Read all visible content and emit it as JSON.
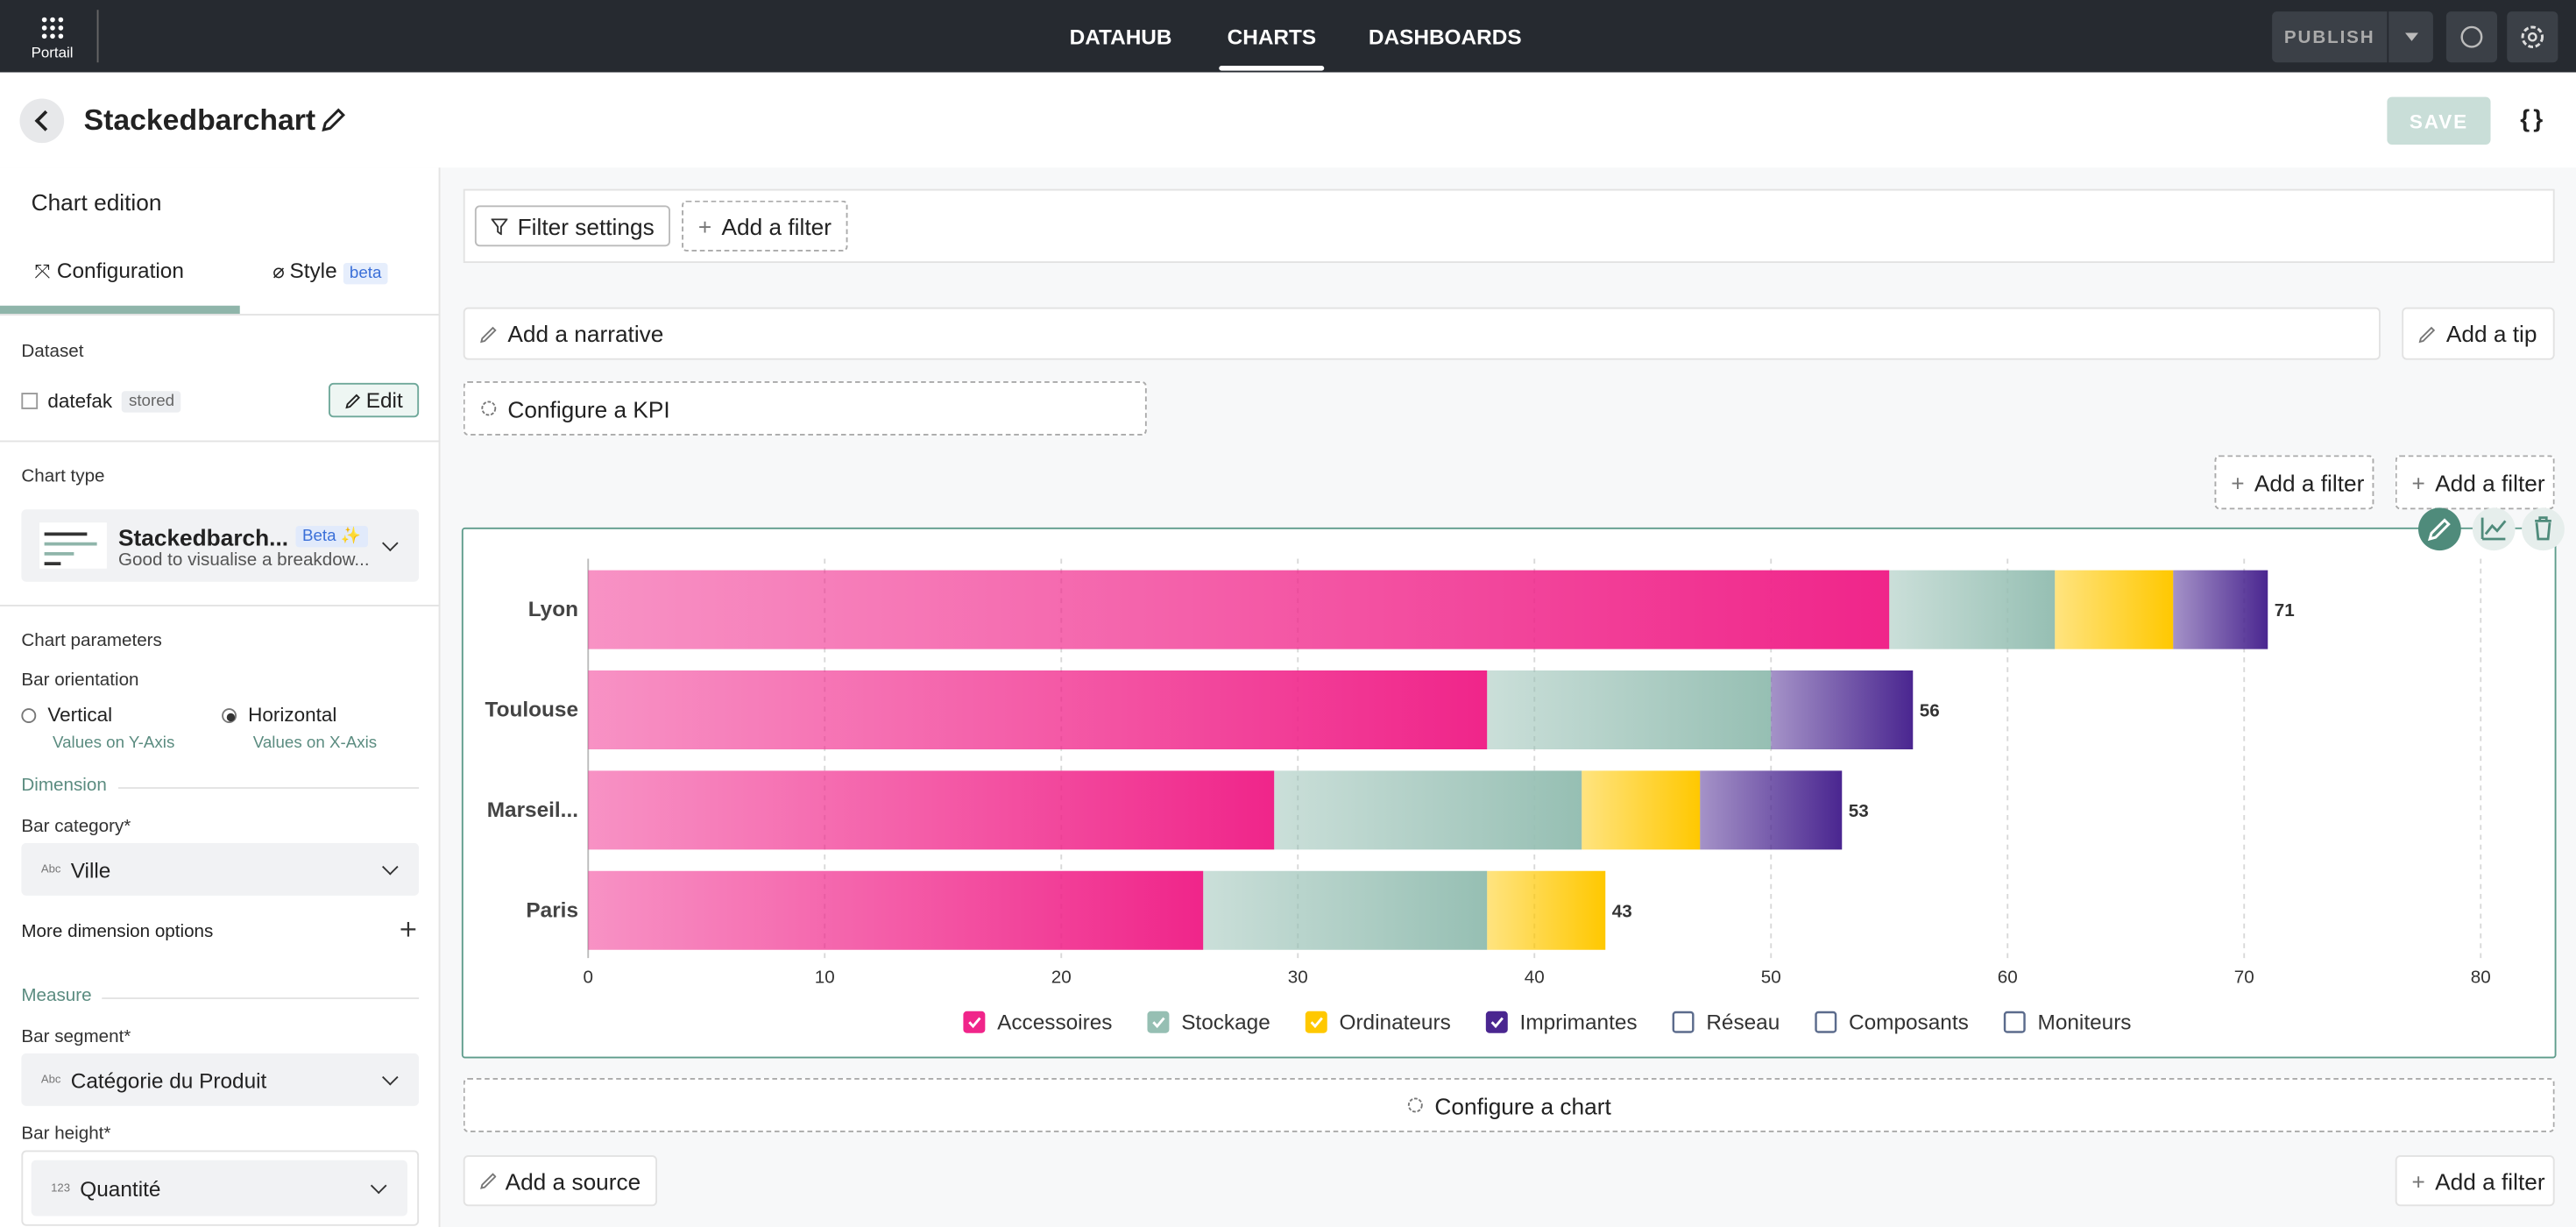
{
  "nav": {
    "app_label": "Portail",
    "links": [
      "DATAHUB",
      "CHARTS",
      "DASHBOARDS"
    ],
    "active": 1,
    "publish": "PUBLISH"
  },
  "header": {
    "title": "Stackedbarchart",
    "save": "SAVE",
    "code": "{ }"
  },
  "sidebar": {
    "title": "Chart edition",
    "tabs": [
      "Configuration",
      "Style"
    ],
    "style_badge": "beta",
    "dataset_label": "Dataset",
    "dataset_name": "datefak",
    "dataset_badge": "stored",
    "edit": "Edit",
    "chart_type_label": "Chart type",
    "chart_type_name": "Stackedbarch...",
    "chart_type_badge": "Beta ✨",
    "chart_type_desc": "Good to visualise a breakdow...",
    "params_label": "Chart parameters",
    "orientation_label": "Bar orientation",
    "orientations": [
      {
        "label": "Vertical",
        "hint": "Values on Y-Axis",
        "selected": false
      },
      {
        "label": "Horizontal",
        "hint": "Values on X-Axis",
        "selected": true
      }
    ],
    "dimension_label": "Dimension",
    "bar_category_label": "Bar category*",
    "bar_category_type": "Abc",
    "bar_category": "Ville",
    "more_dimension": "More dimension options",
    "measure_label": "Measure",
    "bar_segment_label": "Bar segment*",
    "bar_segment_type": "Abc",
    "bar_segment": "Catégorie du Produit",
    "bar_height_label": "Bar height*",
    "bar_height_type": "123",
    "bar_height": "Quantité"
  },
  "canvas": {
    "filter_settings": "Filter settings",
    "add_filter": "Add a filter",
    "add_narrative": "Add a narrative",
    "add_tip": "Add a tip",
    "configure_kpi": "Configure a KPI",
    "configure_chart": "Configure a chart",
    "add_source": "Add a source"
  },
  "chart_data": {
    "type": "bar",
    "orientation": "horizontal",
    "stacked": true,
    "categories": [
      "Lyon",
      "Toulouse",
      "Marseil...",
      "Paris"
    ],
    "series": [
      {
        "name": "Accessoires",
        "color": "#f0258a",
        "visible": true,
        "values": [
          55,
          38,
          29,
          26
        ]
      },
      {
        "name": "Stockage",
        "color": "#96bfb3",
        "visible": true,
        "values": [
          7,
          12,
          13,
          12
        ]
      },
      {
        "name": "Ordinateurs",
        "color": "#ffc800",
        "visible": true,
        "values": [
          5,
          null,
          5,
          5
        ]
      },
      {
        "name": "Imprimantes",
        "color": "#4a2690",
        "visible": true,
        "values": [
          4,
          6,
          6,
          null
        ]
      },
      {
        "name": "Réseau",
        "visible": false,
        "values": [
          null,
          null,
          null,
          null
        ]
      },
      {
        "name": "Composants",
        "visible": false,
        "values": [
          null,
          null,
          null,
          null
        ]
      },
      {
        "name": "Moniteurs",
        "visible": false,
        "values": [
          null,
          null,
          null,
          null
        ]
      }
    ],
    "totals": [
      71,
      56,
      53,
      43
    ],
    "xlim": [
      0,
      80
    ],
    "xticks": [
      0,
      10,
      20,
      30,
      40,
      50,
      60,
      70,
      80
    ],
    "grid": true,
    "legend": "bottom"
  }
}
